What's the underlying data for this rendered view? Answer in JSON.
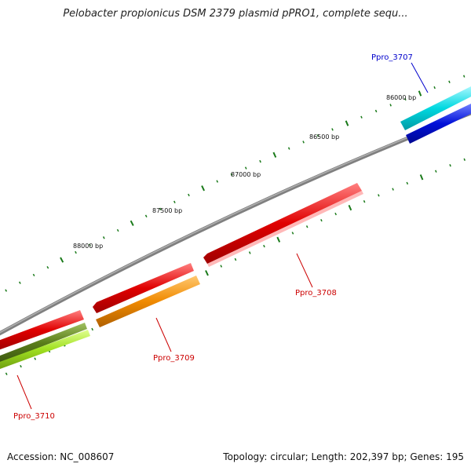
{
  "title": "Pelobacter propionicus DSM 2379 plasmid pPRO1, complete sequ...",
  "footer": {
    "accession": "Accession: NC_008607",
    "summary": "Topology: circular; Length: 202,397 bp; Genes: 195"
  },
  "colors": {
    "backbone": "#808080",
    "tick": "#1a7a1a",
    "label_red": "#cc0000",
    "label_blue": "#0000cc"
  },
  "bp_labels": [
    "86000 bp",
    "86500 bp",
    "87000 bp",
    "87500 bp",
    "88000 bp"
  ],
  "genes": [
    {
      "id": "Ppro_3707",
      "label": "Ppro_3707",
      "label_color": "#0000cc"
    },
    {
      "id": "Ppro_3708",
      "label": "Ppro_3708",
      "label_color": "#cc0000"
    },
    {
      "id": "Ppro_3709",
      "label": "Ppro_3709",
      "label_color": "#cc0000"
    },
    {
      "id": "Ppro_3710",
      "label": "Ppro_3710",
      "label_color": "#cc0000"
    }
  ],
  "features": [
    {
      "name": "feature-cyan",
      "color": "#00d8e0",
      "light": "#a8f8ff"
    },
    {
      "name": "feature-blue",
      "color": "#0010d8",
      "light": "#7080ff"
    },
    {
      "name": "feature-red-ppro3708",
      "color": "#e00000",
      "light": "#ff8080"
    },
    {
      "name": "feature-red-ppro3709",
      "color": "#e00000",
      "light": "#ff8080"
    },
    {
      "name": "feature-orange-ppro3709",
      "color": "#f08a00",
      "light": "#ffc870"
    },
    {
      "name": "feature-red-ppro3710",
      "color": "#e00000",
      "light": "#ff8080"
    },
    {
      "name": "feature-olive-ppro3710",
      "color": "#5a7d1a",
      "light": "#a0c060"
    },
    {
      "name": "feature-lime-ppro3710",
      "color": "#a0e020",
      "light": "#e0ff90"
    }
  ]
}
